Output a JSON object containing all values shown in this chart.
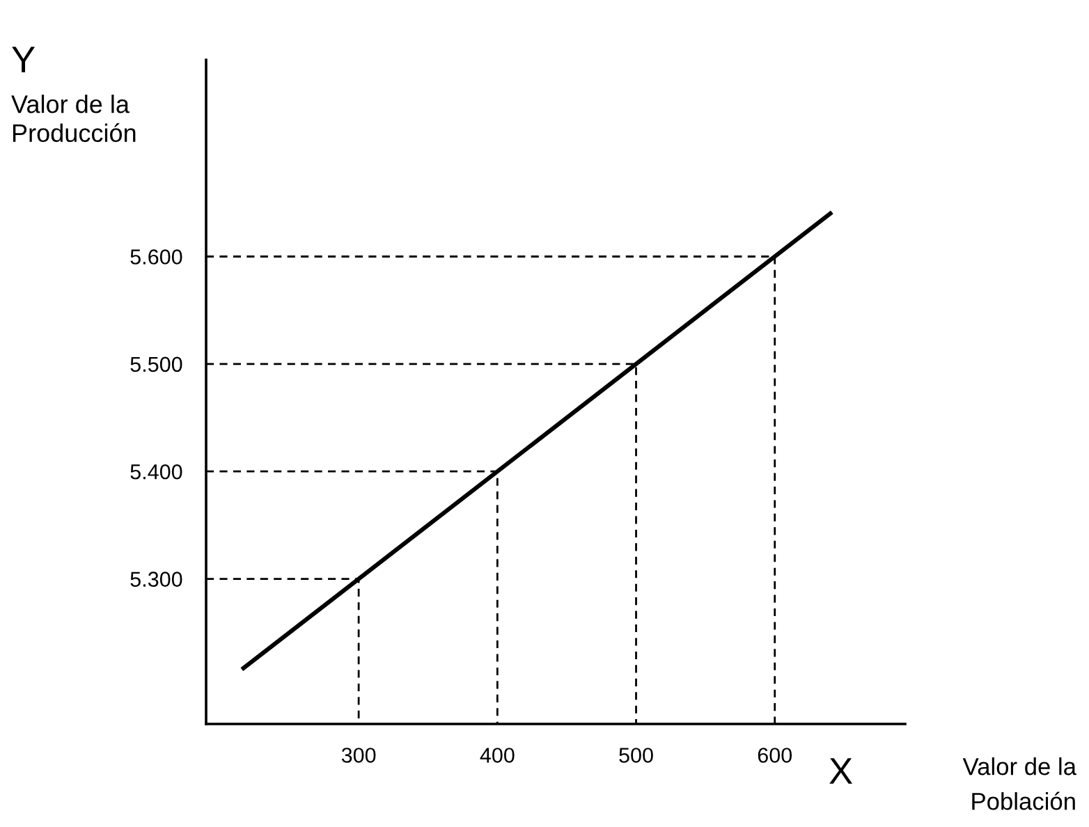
{
  "chart_data": {
    "type": "line",
    "xlabel": "Valor de la\nPoblación",
    "ylabel": "Valor de la\nProducción",
    "annotations": [
      "Y",
      "X"
    ],
    "xlim": [
      190,
      694
    ],
    "ylim": [
      5165,
      5783
    ],
    "xticks": [
      300,
      400,
      500,
      600
    ],
    "yticks": [
      {
        "value": 5300,
        "label": "5.300"
      },
      {
        "value": 5400,
        "label": "5.400"
      },
      {
        "value": 5500,
        "label": "5.500"
      },
      {
        "value": 5600,
        "label": "5.600"
      }
    ],
    "grid": false,
    "legend": false,
    "marker": "none",
    "series": [
      {
        "color": "#000000",
        "x": [
          217,
          640
        ],
        "values": [
          5217,
          5640
        ],
        "line_style": "solid"
      },
      {
        "color": "#000000",
        "x": [
          190,
          300,
          300
        ],
        "values": [
          5300,
          5300,
          5165
        ],
        "line_style": "dashed"
      },
      {
        "color": "#000000",
        "x": [
          190,
          400,
          400
        ],
        "values": [
          5400,
          5400,
          5165
        ],
        "line_style": "dashed"
      },
      {
        "color": "#000000",
        "x": [
          190,
          500,
          500
        ],
        "values": [
          5500,
          5500,
          5165
        ],
        "line_style": "dashed"
      },
      {
        "color": "#000000",
        "x": [
          190,
          600,
          600
        ],
        "values": [
          5600,
          5600,
          5165
        ],
        "line_style": "dashed"
      }
    ]
  }
}
